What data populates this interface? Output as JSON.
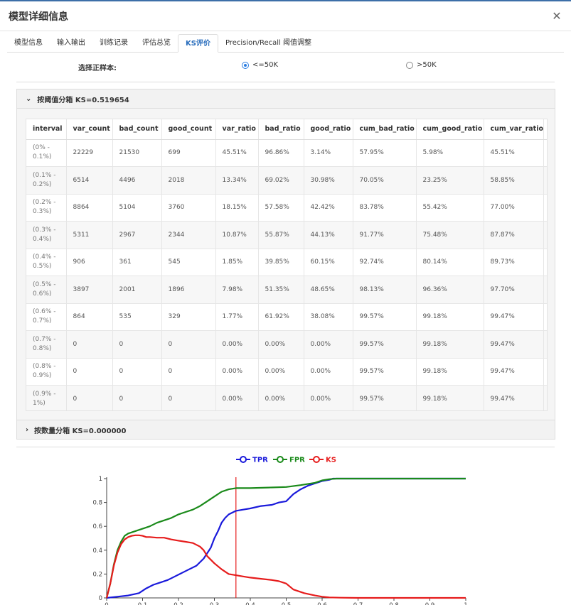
{
  "dialog": {
    "title": "模型详细信息",
    "close_icon": "close-icon"
  },
  "tabs": [
    {
      "label": "模型信息",
      "active": false
    },
    {
      "label": "输入输出",
      "active": false
    },
    {
      "label": "训练记录",
      "active": false
    },
    {
      "label": "评估总览",
      "active": false
    },
    {
      "label": "KS评价",
      "active": true
    },
    {
      "label": "Precision/Recall 阈值调整",
      "active": false
    }
  ],
  "positive_sample": {
    "label": "选择正样本:",
    "options": [
      {
        "label": "<=50K",
        "checked": true
      },
      {
        "label": ">50K",
        "checked": false
      }
    ]
  },
  "panel_threshold": {
    "title": "按阈值分箱 KS=0.519654",
    "expanded": true
  },
  "panel_count": {
    "title": "按数量分箱 KS=0.000000",
    "expanded": false
  },
  "table": {
    "columns": [
      "interval",
      "var_count",
      "bad_count",
      "good_count",
      "var_ratio",
      "bad_ratio",
      "good_ratio",
      "cum_bad_ratio",
      "cum_good_ratio",
      "cum_var_ratio"
    ],
    "rows": [
      [
        "(0% - 0.1%)",
        "22229",
        "21530",
        "699",
        "45.51%",
        "96.86%",
        "3.14%",
        "57.95%",
        "5.98%",
        "45.51%"
      ],
      [
        "(0.1% - 0.2%)",
        "6514",
        "4496",
        "2018",
        "13.34%",
        "69.02%",
        "30.98%",
        "70.05%",
        "23.25%",
        "58.85%"
      ],
      [
        "(0.2% - 0.3%)",
        "8864",
        "5104",
        "3760",
        "18.15%",
        "57.58%",
        "42.42%",
        "83.78%",
        "55.42%",
        "77.00%"
      ],
      [
        "(0.3% - 0.4%)",
        "5311",
        "2967",
        "2344",
        "10.87%",
        "55.87%",
        "44.13%",
        "91.77%",
        "75.48%",
        "87.87%"
      ],
      [
        "(0.4% - 0.5%)",
        "906",
        "361",
        "545",
        "1.85%",
        "39.85%",
        "60.15%",
        "92.74%",
        "80.14%",
        "89.73%"
      ],
      [
        "(0.5% - 0.6%)",
        "3897",
        "2001",
        "1896",
        "7.98%",
        "51.35%",
        "48.65%",
        "98.13%",
        "96.36%",
        "97.70%"
      ],
      [
        "(0.6% - 0.7%)",
        "864",
        "535",
        "329",
        "1.77%",
        "61.92%",
        "38.08%",
        "99.57%",
        "99.18%",
        "99.47%"
      ],
      [
        "(0.7% - 0.8%)",
        "0",
        "0",
        "0",
        "0.00%",
        "0.00%",
        "0.00%",
        "99.57%",
        "99.18%",
        "99.47%"
      ],
      [
        "(0.8% - 0.9%)",
        "0",
        "0",
        "0",
        "0.00%",
        "0.00%",
        "0.00%",
        "99.57%",
        "99.18%",
        "99.47%"
      ],
      [
        "(0.9% - 1%)",
        "0",
        "0",
        "0",
        "0.00%",
        "0.00%",
        "0.00%",
        "99.57%",
        "99.18%",
        "99.47%"
      ]
    ]
  },
  "chart_data": {
    "type": "line",
    "title": "",
    "xlabel": "",
    "ylabel": "",
    "xlim": [
      0,
      1
    ],
    "ylim": [
      0,
      1
    ],
    "yticks": [
      "0",
      "0.2",
      "0.4",
      "0.6",
      "0.8",
      "1"
    ],
    "xticks": [
      "0",
      "0.1",
      "0.2",
      "0.3",
      "0.4",
      "0.5",
      "0.6",
      "0.7",
      "0.8",
      "0.9",
      "1"
    ],
    "legend_position": "top-center",
    "ks_line_x": 0.36,
    "series": [
      {
        "name": "TPR",
        "color": "#1a1adb",
        "points": [
          [
            0,
            0
          ],
          [
            0.03,
            0.01
          ],
          [
            0.06,
            0.02
          ],
          [
            0.09,
            0.04
          ],
          [
            0.11,
            0.08
          ],
          [
            0.13,
            0.11
          ],
          [
            0.15,
            0.13
          ],
          [
            0.17,
            0.15
          ],
          [
            0.19,
            0.18
          ],
          [
            0.21,
            0.21
          ],
          [
            0.23,
            0.24
          ],
          [
            0.25,
            0.27
          ],
          [
            0.27,
            0.33
          ],
          [
            0.29,
            0.42
          ],
          [
            0.3,
            0.5
          ],
          [
            0.31,
            0.56
          ],
          [
            0.32,
            0.63
          ],
          [
            0.33,
            0.67
          ],
          [
            0.34,
            0.7
          ],
          [
            0.36,
            0.73
          ],
          [
            0.38,
            0.74
          ],
          [
            0.4,
            0.75
          ],
          [
            0.43,
            0.77
          ],
          [
            0.46,
            0.78
          ],
          [
            0.48,
            0.8
          ],
          [
            0.5,
            0.81
          ],
          [
            0.52,
            0.87
          ],
          [
            0.54,
            0.91
          ],
          [
            0.56,
            0.94
          ],
          [
            0.58,
            0.96
          ],
          [
            0.6,
            0.98
          ],
          [
            0.62,
            0.99
          ],
          [
            0.63,
            1.0
          ],
          [
            0.7,
            1.0
          ],
          [
            0.8,
            1.0
          ],
          [
            0.9,
            1.0
          ],
          [
            1.0,
            1.0
          ]
        ]
      },
      {
        "name": "FPR",
        "color": "#1a8a1a",
        "points": [
          [
            0,
            0
          ],
          [
            0.01,
            0.12
          ],
          [
            0.02,
            0.28
          ],
          [
            0.03,
            0.4
          ],
          [
            0.04,
            0.47
          ],
          [
            0.05,
            0.52
          ],
          [
            0.06,
            0.54
          ],
          [
            0.08,
            0.56
          ],
          [
            0.1,
            0.58
          ],
          [
            0.12,
            0.6
          ],
          [
            0.14,
            0.63
          ],
          [
            0.16,
            0.65
          ],
          [
            0.18,
            0.67
          ],
          [
            0.2,
            0.7
          ],
          [
            0.22,
            0.72
          ],
          [
            0.24,
            0.74
          ],
          [
            0.26,
            0.77
          ],
          [
            0.28,
            0.81
          ],
          [
            0.3,
            0.85
          ],
          [
            0.32,
            0.89
          ],
          [
            0.34,
            0.91
          ],
          [
            0.36,
            0.92
          ],
          [
            0.4,
            0.92
          ],
          [
            0.45,
            0.925
          ],
          [
            0.5,
            0.93
          ],
          [
            0.54,
            0.945
          ],
          [
            0.58,
            0.965
          ],
          [
            0.6,
            0.985
          ],
          [
            0.62,
            0.995
          ],
          [
            0.64,
            1.0
          ],
          [
            0.7,
            1.0
          ],
          [
            0.8,
            1.0
          ],
          [
            0.9,
            1.0
          ],
          [
            1.0,
            1.0
          ]
        ]
      },
      {
        "name": "KS",
        "color": "#e61c1c",
        "points": [
          [
            0,
            0
          ],
          [
            0.01,
            0.12
          ],
          [
            0.02,
            0.27
          ],
          [
            0.03,
            0.38
          ],
          [
            0.04,
            0.45
          ],
          [
            0.05,
            0.49
          ],
          [
            0.06,
            0.51
          ],
          [
            0.07,
            0.52
          ],
          [
            0.08,
            0.525
          ],
          [
            0.09,
            0.525
          ],
          [
            0.1,
            0.52
          ],
          [
            0.11,
            0.51
          ],
          [
            0.12,
            0.51
          ],
          [
            0.14,
            0.505
          ],
          [
            0.16,
            0.505
          ],
          [
            0.18,
            0.49
          ],
          [
            0.2,
            0.48
          ],
          [
            0.22,
            0.47
          ],
          [
            0.24,
            0.46
          ],
          [
            0.26,
            0.43
          ],
          [
            0.27,
            0.4
          ],
          [
            0.28,
            0.35
          ],
          [
            0.3,
            0.29
          ],
          [
            0.32,
            0.24
          ],
          [
            0.34,
            0.2
          ],
          [
            0.36,
            0.19
          ],
          [
            0.38,
            0.18
          ],
          [
            0.4,
            0.17
          ],
          [
            0.43,
            0.16
          ],
          [
            0.46,
            0.15
          ],
          [
            0.48,
            0.14
          ],
          [
            0.5,
            0.12
          ],
          [
            0.52,
            0.07
          ],
          [
            0.55,
            0.04
          ],
          [
            0.58,
            0.02
          ],
          [
            0.6,
            0.01
          ],
          [
            0.62,
            0.004
          ],
          [
            0.65,
            0.002
          ],
          [
            0.7,
            0.0
          ],
          [
            0.8,
            0.0
          ],
          [
            0.9,
            0.0
          ],
          [
            1.0,
            0.0
          ]
        ]
      }
    ]
  }
}
